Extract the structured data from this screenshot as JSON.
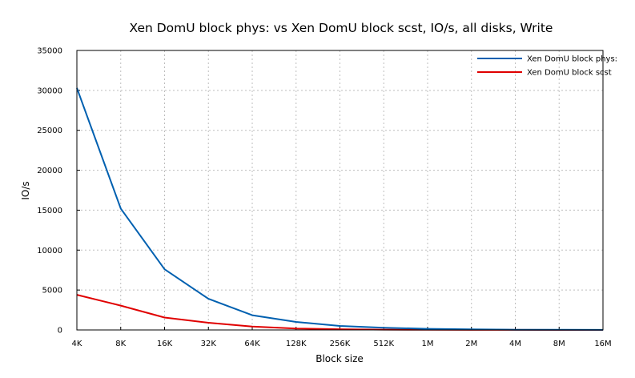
{
  "chart_data": {
    "type": "line",
    "title": "Xen DomU block phys: vs Xen DomU block scst, IO/s, all disks, Write",
    "xlabel": "Block size",
    "ylabel": "IO/s",
    "categories": [
      "4K",
      "8K",
      "16K",
      "32K",
      "64K",
      "128K",
      "256K",
      "512K",
      "1M",
      "2M",
      "4M",
      "8M",
      "16M"
    ],
    "ylim": [
      0,
      35000
    ],
    "yticks": [
      0,
      5000,
      10000,
      15000,
      20000,
      25000,
      30000,
      35000
    ],
    "grid": true,
    "legend_position": "top-right",
    "series": [
      {
        "name": "Xen DomU block phys:",
        "color": "#0060b0",
        "values": [
          30300,
          15200,
          7600,
          3900,
          1850,
          1000,
          500,
          280,
          140,
          70,
          35,
          18,
          9
        ]
      },
      {
        "name": "Xen DomU block scst",
        "color": "#e00000",
        "values": [
          4400,
          3050,
          1550,
          900,
          420,
          180,
          90,
          45,
          25,
          12,
          6,
          3,
          2
        ]
      }
    ]
  }
}
